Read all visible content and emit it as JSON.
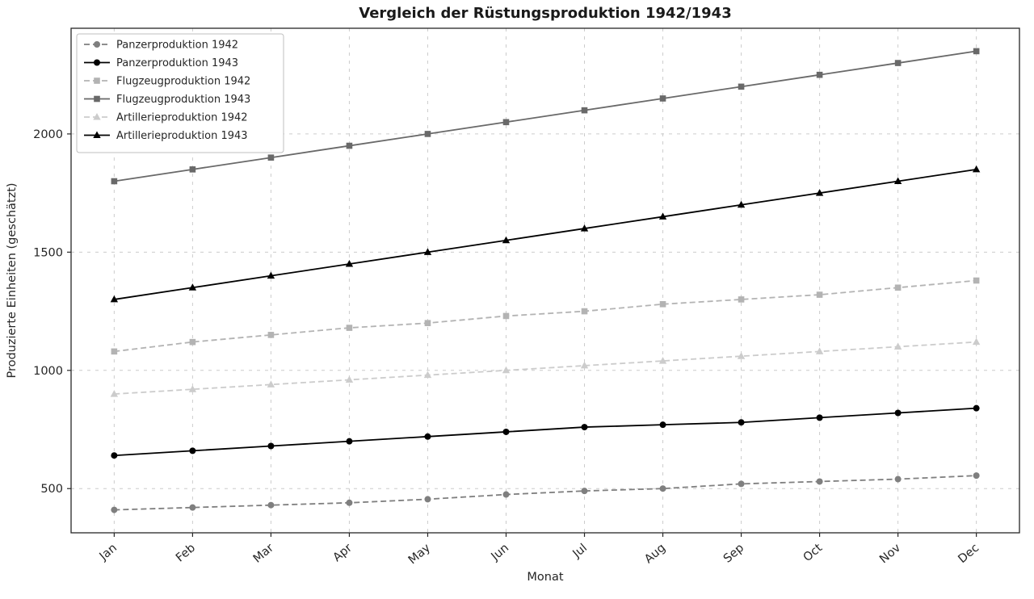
{
  "chart_data": {
    "type": "line",
    "title": "Vergleich der Rüstungsproduktion 1942/1943",
    "xlabel": "Monat",
    "ylabel": "Produzierte Einheiten (geschätzt)",
    "categories": [
      "Jan",
      "Feb",
      "Mar",
      "Apr",
      "May",
      "Jun",
      "Jul",
      "Aug",
      "Sep",
      "Oct",
      "Nov",
      "Dec"
    ],
    "yticks": [
      500,
      1000,
      1500,
      2000
    ],
    "ylim": [
      313,
      2447
    ],
    "grid": true,
    "grid_style": "dashed",
    "legend_position": "upper left",
    "series": [
      {
        "name": "Panzerproduktion 1942",
        "values": [
          410,
          420,
          430,
          440,
          455,
          475,
          490,
          500,
          520,
          530,
          540,
          555
        ],
        "color": "#7f7f7f",
        "line_style": "dashed",
        "marker": "circle"
      },
      {
        "name": "Panzerproduktion 1943",
        "values": [
          640,
          660,
          680,
          700,
          720,
          740,
          760,
          770,
          780,
          800,
          820,
          840
        ],
        "color": "#000000",
        "line_style": "solid",
        "marker": "circle"
      },
      {
        "name": "Flugzeugproduktion 1942",
        "values": [
          1080,
          1120,
          1150,
          1180,
          1200,
          1230,
          1250,
          1280,
          1300,
          1320,
          1350,
          1380
        ],
        "color": "#b3b3b3",
        "line_style": "dashed",
        "marker": "square"
      },
      {
        "name": "Flugzeugproduktion 1943",
        "values": [
          1800,
          1850,
          1900,
          1950,
          2000,
          2050,
          2100,
          2150,
          2200,
          2250,
          2300,
          2350
        ],
        "color": "#696969",
        "line_style": "solid",
        "marker": "square"
      },
      {
        "name": "Artillerieproduktion 1942",
        "values": [
          900,
          920,
          940,
          960,
          980,
          1000,
          1020,
          1040,
          1060,
          1080,
          1100,
          1120
        ],
        "color": "#cccccc",
        "line_style": "dashed",
        "marker": "triangle"
      },
      {
        "name": "Artillerieproduktion 1943",
        "values": [
          1300,
          1350,
          1400,
          1450,
          1500,
          1550,
          1600,
          1650,
          1700,
          1750,
          1800,
          1850
        ],
        "color": "#000000",
        "line_style": "solid",
        "marker": "triangle"
      }
    ]
  },
  "colors": {
    "axis": "#262626",
    "grid": "#cccccc",
    "legend_border": "#bfbfbf",
    "legend_background": "#ffffff",
    "background": "#ffffff",
    "title": "#1a1a1a"
  }
}
